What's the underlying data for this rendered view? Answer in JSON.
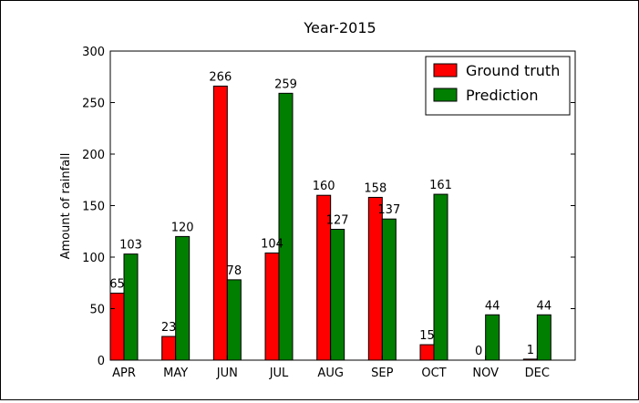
{
  "chart_data": {
    "type": "bar",
    "title": "Year-2015",
    "xlabel": "",
    "ylabel": "Amount of rainfall",
    "categories": [
      "APR",
      "MAY",
      "JUN",
      "JUL",
      "AUG",
      "SEP",
      "OCT",
      "NOV",
      "DEC"
    ],
    "series": [
      {
        "name": "Ground truth",
        "color": "#ff0000",
        "values": [
          65,
          23,
          266,
          104,
          160,
          158,
          15,
          0,
          1
        ]
      },
      {
        "name": "Prediction",
        "color": "#007f00",
        "values": [
          103,
          120,
          78,
          259,
          127,
          137,
          161,
          44,
          44
        ]
      }
    ],
    "ylim": [
      0,
      300
    ],
    "yticks": [
      "0",
      "50",
      "100",
      "150",
      "200",
      "250",
      "300"
    ],
    "grid": false,
    "legend_position": "top-right",
    "data_labels": true
  }
}
